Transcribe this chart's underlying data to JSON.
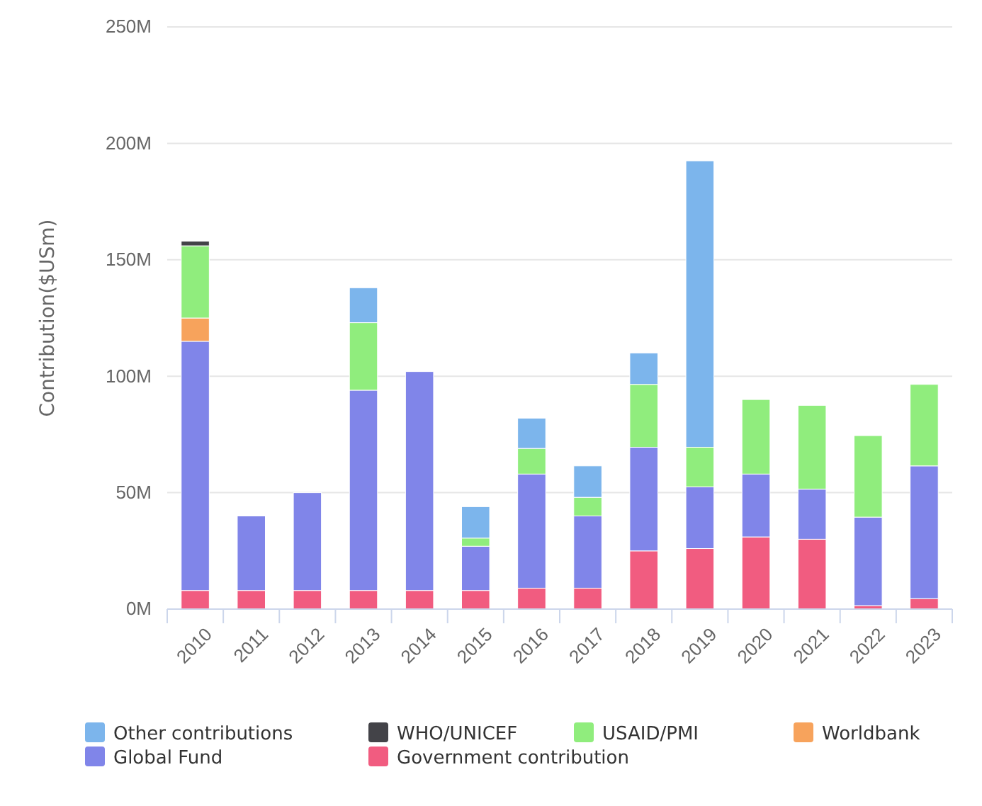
{
  "chart_data": {
    "type": "bar",
    "stacked": true,
    "ylabel": "Contribution($USm)",
    "categories": [
      "2010",
      "2011",
      "2012",
      "2013",
      "2014",
      "2015",
      "2016",
      "2017",
      "2018",
      "2019",
      "2020",
      "2021",
      "2022",
      "2023"
    ],
    "series": [
      {
        "name": "Government contribution",
        "color": "#f15c80",
        "values": [
          8,
          8,
          8,
          8,
          8,
          8,
          9,
          9,
          25,
          26,
          31,
          30,
          1.5,
          4.5
        ]
      },
      {
        "name": "Global Fund",
        "color": "#8085e9",
        "values": [
          107,
          32,
          42,
          86,
          94,
          19,
          49,
          31,
          44.5,
          26.5,
          27,
          21.5,
          38,
          57
        ]
      },
      {
        "name": "Worldbank",
        "color": "#f7a35c",
        "values": [
          10,
          null,
          null,
          null,
          null,
          null,
          null,
          null,
          null,
          null,
          null,
          null,
          null,
          null
        ]
      },
      {
        "name": "USAID/PMI",
        "color": "#90ed7d",
        "values": [
          31,
          null,
          null,
          29,
          null,
          3.5,
          11,
          8,
          27,
          17,
          32,
          36,
          35,
          35
        ]
      },
      {
        "name": "WHO/UNICEF",
        "color": "#434348",
        "values": [
          2,
          null,
          null,
          null,
          null,
          null,
          null,
          null,
          null,
          null,
          null,
          null,
          null,
          null
        ]
      },
      {
        "name": "Other contributions",
        "color": "#7cb5ec",
        "values": [
          null,
          null,
          null,
          15,
          null,
          13.5,
          13,
          13.5,
          13.5,
          123,
          null,
          null,
          null,
          null
        ]
      }
    ],
    "ylim": [
      0,
      250
    ],
    "yticks": [
      {
        "value": 0,
        "label": "0M"
      },
      {
        "value": 50,
        "label": "50M"
      },
      {
        "value": 100,
        "label": "100M"
      },
      {
        "value": 150,
        "label": "150M"
      },
      {
        "value": 200,
        "label": "200M"
      },
      {
        "value": 250,
        "label": "250M"
      }
    ],
    "grid": "y",
    "legend": "bottom left"
  }
}
